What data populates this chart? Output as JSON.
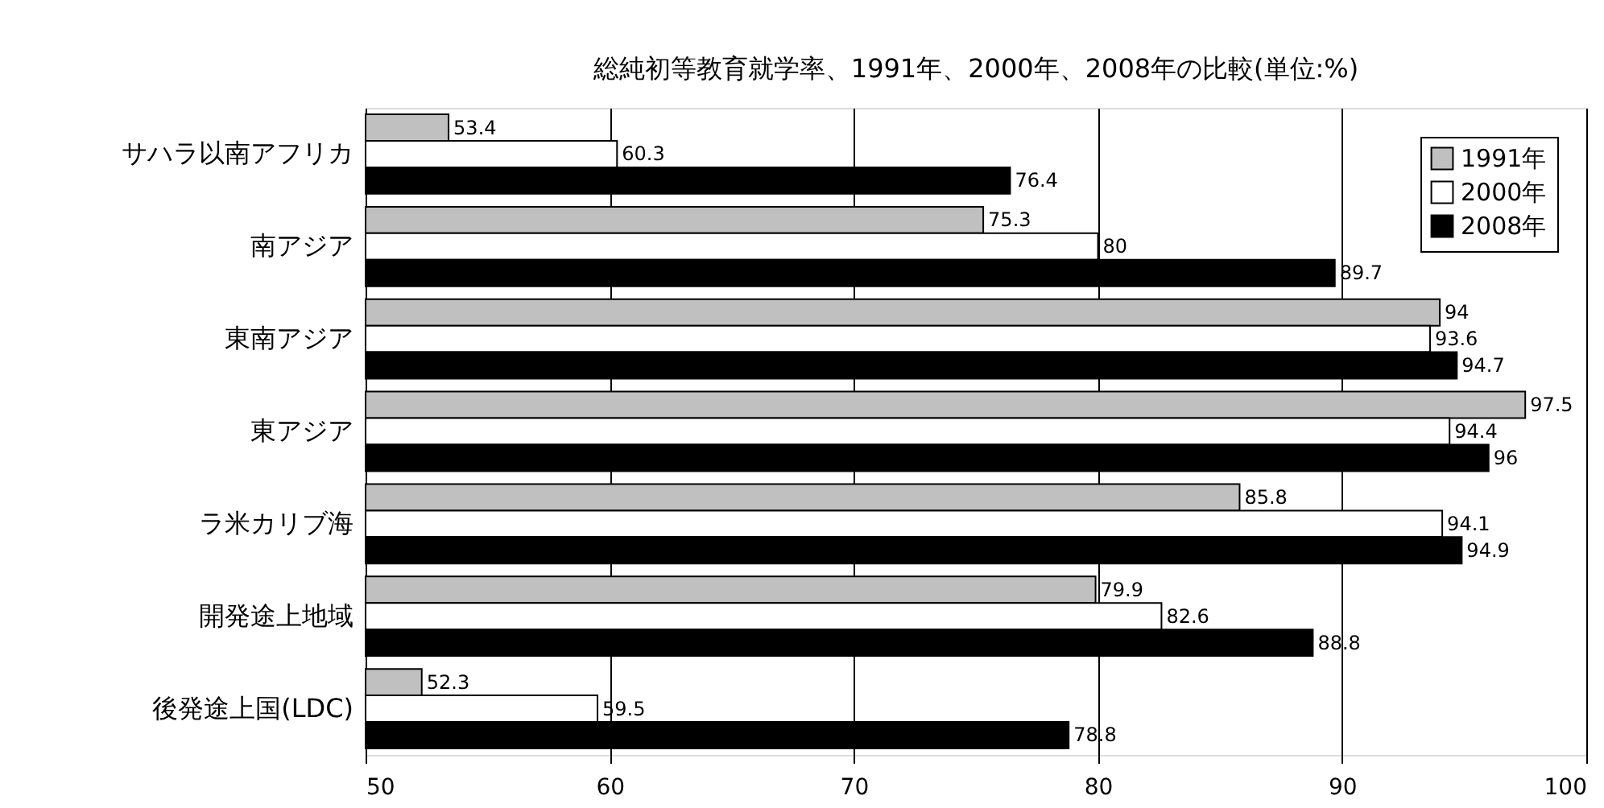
{
  "chart_data": {
    "type": "bar",
    "orientation": "horizontal",
    "title": "総純初等教育就学率、1991年、2000年、2008年の比較(単位:%)",
    "categories": [
      "サハラ以南アフリカ",
      "南アジア",
      "東南アジア",
      "東アジア",
      "ラ米カリブ海",
      "開発途上地域",
      "後発途上国(LDC)"
    ],
    "series": [
      {
        "name": "1991年",
        "color": "#c0c0c0",
        "values": [
          53.4,
          75.3,
          94,
          97.5,
          85.8,
          79.9,
          52.3
        ]
      },
      {
        "name": "2000年",
        "color": "#ffffff",
        "values": [
          60.3,
          80,
          93.6,
          94.4,
          94.1,
          82.6,
          59.5
        ]
      },
      {
        "name": "2008年",
        "color": "#000000",
        "values": [
          76.4,
          89.7,
          94.7,
          96,
          94.9,
          88.8,
          78.8
        ]
      }
    ],
    "xlim": [
      50,
      100
    ],
    "xticks": [
      50,
      60,
      70,
      80,
      90,
      100
    ],
    "grid": "x",
    "legend": "top right",
    "data_labels": true
  }
}
